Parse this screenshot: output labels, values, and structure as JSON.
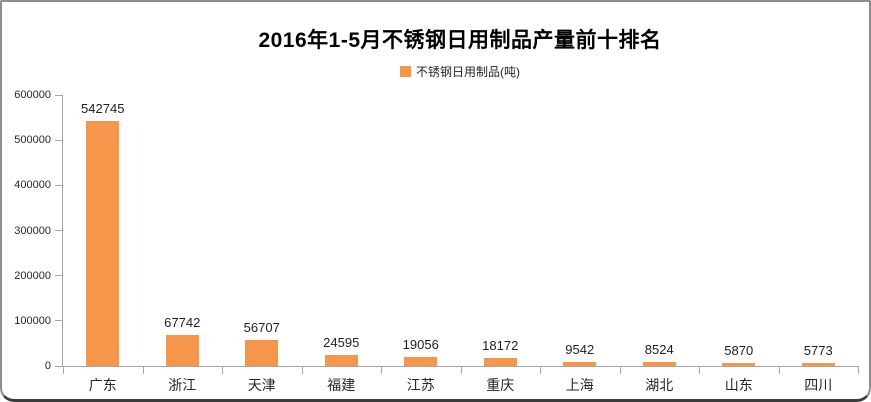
{
  "chart_data": {
    "type": "bar",
    "title": "2016年1-5月不锈钢日用制品产量前十排名",
    "legend": "不锈钢日用制品(吨)",
    "categories": [
      "广东",
      "浙江",
      "天津",
      "福建",
      "江苏",
      "重庆",
      "上海",
      "湖北",
      "山东",
      "四川"
    ],
    "values": [
      542745,
      67742,
      56707,
      24595,
      19056,
      18172,
      9542,
      8524,
      5870,
      5773
    ],
    "ylabel": "",
    "xlabel": "",
    "ylim": [
      0,
      600000
    ],
    "yticks": [
      0,
      100000,
      200000,
      300000,
      400000,
      500000,
      600000
    ],
    "grid": false,
    "legend_position": "top",
    "bar_color": "#F6964A",
    "axis_color": "#A6A6A6",
    "label_color": "#262626",
    "title_color": "#000000"
  }
}
